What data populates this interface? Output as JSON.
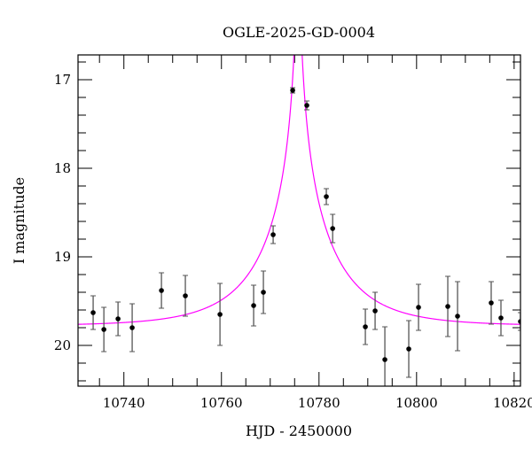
{
  "chart_data": {
    "type": "scatter",
    "title": "OGLE-2025-GD-0004",
    "xlabel": "HJD - 2450000",
    "ylabel": "I magnitude",
    "xlim": [
      10730.6,
      10821.3
    ],
    "ylim": [
      20.46,
      16.72
    ],
    "y_inverted": true,
    "x_ticks": [
      10740,
      10760,
      10780,
      10800,
      10820
    ],
    "y_ticks": [
      17,
      18,
      19,
      20
    ],
    "x_minor_step": 5,
    "y_minor_step": 0.2,
    "grid": false,
    "points": [
      {
        "x": 10733.7,
        "y": 19.63,
        "err": 0.19
      },
      {
        "x": 10735.9,
        "y": 19.82,
        "err": 0.25
      },
      {
        "x": 10738.8,
        "y": 19.7,
        "err": 0.19
      },
      {
        "x": 10741.7,
        "y": 19.8,
        "err": 0.27
      },
      {
        "x": 10747.7,
        "y": 19.38,
        "err": 0.2
      },
      {
        "x": 10752.6,
        "y": 19.44,
        "err": 0.23
      },
      {
        "x": 10759.7,
        "y": 19.65,
        "err": 0.35
      },
      {
        "x": 10766.6,
        "y": 19.55,
        "err": 0.23
      },
      {
        "x": 10768.6,
        "y": 19.4,
        "err": 0.24
      },
      {
        "x": 10770.6,
        "y": 18.75,
        "err": 0.1
      },
      {
        "x": 10774.6,
        "y": 17.12,
        "err": 0.03
      },
      {
        "x": 10777.5,
        "y": 17.29,
        "err": 0.05
      },
      {
        "x": 10781.5,
        "y": 18.32,
        "err": 0.09
      },
      {
        "x": 10782.8,
        "y": 18.68,
        "err": 0.16
      },
      {
        "x": 10789.5,
        "y": 19.79,
        "err": 0.2
      },
      {
        "x": 10791.5,
        "y": 19.61,
        "err": 0.21
      },
      {
        "x": 10793.5,
        "y": 20.16,
        "err": 0.37
      },
      {
        "x": 10798.4,
        "y": 20.04,
        "err": 0.32
      },
      {
        "x": 10800.4,
        "y": 19.57,
        "err": 0.26
      },
      {
        "x": 10806.4,
        "y": 19.56,
        "err": 0.34
      },
      {
        "x": 10808.4,
        "y": 19.67,
        "err": 0.39
      },
      {
        "x": 10815.3,
        "y": 19.52,
        "err": 0.24
      },
      {
        "x": 10817.3,
        "y": 19.69,
        "err": 0.2
      },
      {
        "x": 10821.3,
        "y": 19.73,
        "err": 0.1
      }
    ],
    "model": {
      "type": "point-lens",
      "t0": 10775.7,
      "tE": 15,
      "u0": 0.02,
      "baseline": 19.78
    },
    "colors": {
      "points": "#000000",
      "errorbars": "#555555",
      "model": "#ff00ff"
    }
  }
}
